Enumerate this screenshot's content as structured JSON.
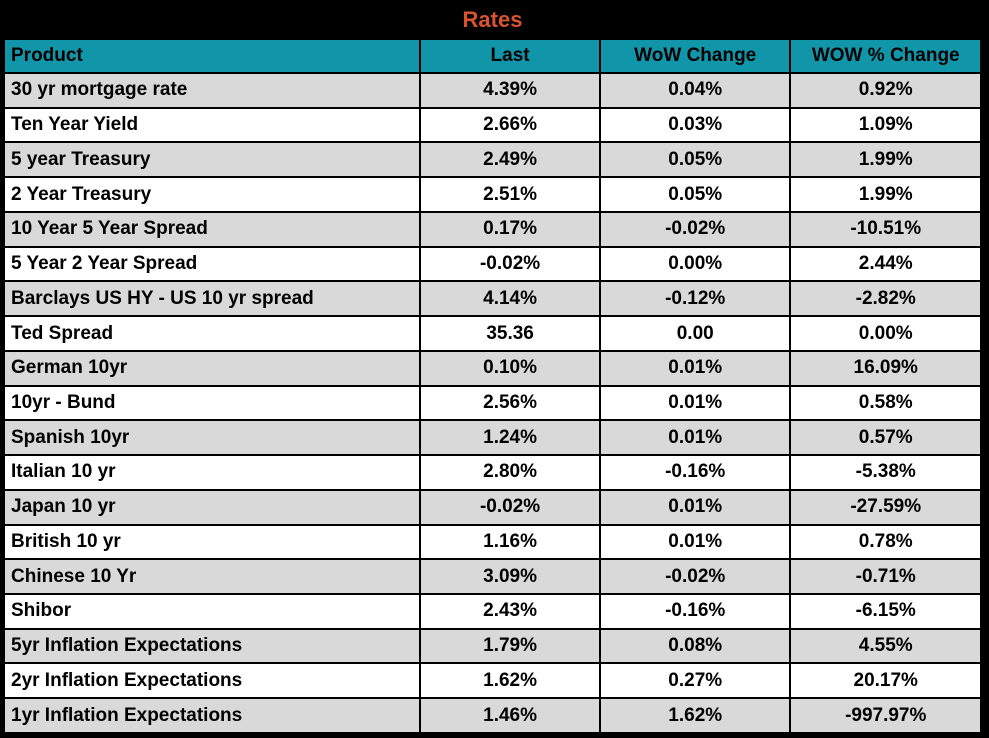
{
  "title": "Rates",
  "chart_data": {
    "type": "table",
    "title": "Rates",
    "columns": [
      "Product",
      "Last",
      "WoW Change",
      "WOW % Change"
    ],
    "rows": [
      [
        "30 yr mortgage rate",
        "4.39%",
        "0.04%",
        "0.92%"
      ],
      [
        "Ten Year Yield",
        "2.66%",
        "0.03%",
        "1.09%"
      ],
      [
        "5 year Treasury",
        "2.49%",
        "0.05%",
        "1.99%"
      ],
      [
        "2 Year Treasury",
        "2.51%",
        "0.05%",
        "1.99%"
      ],
      [
        "10 Year 5 Year Spread",
        "0.17%",
        "-0.02%",
        "-10.51%"
      ],
      [
        "5 Year 2 Year Spread",
        "-0.02%",
        "0.00%",
        "2.44%"
      ],
      [
        "Barclays US HY - US 10 yr spread",
        "4.14%",
        "-0.12%",
        "-2.82%"
      ],
      [
        "Ted Spread",
        "35.36",
        "0.00",
        "0.00%"
      ],
      [
        "German 10yr",
        "0.10%",
        "0.01%",
        "16.09%"
      ],
      [
        "10yr - Bund",
        "2.56%",
        "0.01%",
        "0.58%"
      ],
      [
        "Spanish 10yr",
        "1.24%",
        "0.01%",
        "0.57%"
      ],
      [
        "Italian 10 yr",
        "2.80%",
        "-0.16%",
        "-5.38%"
      ],
      [
        "Japan 10 yr",
        "-0.02%",
        "0.01%",
        "-27.59%"
      ],
      [
        "British 10 yr",
        "1.16%",
        "0.01%",
        "0.78%"
      ],
      [
        "Chinese 10 Yr",
        "3.09%",
        "-0.02%",
        "-0.71%"
      ],
      [
        "Shibor",
        "2.43%",
        "-0.16%",
        "-6.15%"
      ],
      [
        "5yr Inflation Expectations",
        "1.79%",
        "0.08%",
        "4.55%"
      ],
      [
        "2yr Inflation Expectations",
        "1.62%",
        "0.27%",
        "20.17%"
      ],
      [
        "1yr Inflation Expectations",
        "1.46%",
        "1.62%",
        "-997.97%"
      ]
    ],
    "layout": {
      "row_striping": "odd-rows-gray",
      "first_column_align": "left",
      "value_columns_align": "center"
    }
  },
  "colors": {
    "frame_bg": "#000000",
    "title_text": "#D6552E",
    "header_bg": "#1095A9",
    "header_text": "#000000",
    "row_stripe_bg": "#D9D9D9",
    "row_bg": "#FFFFFF",
    "grid_border": "#000000"
  }
}
